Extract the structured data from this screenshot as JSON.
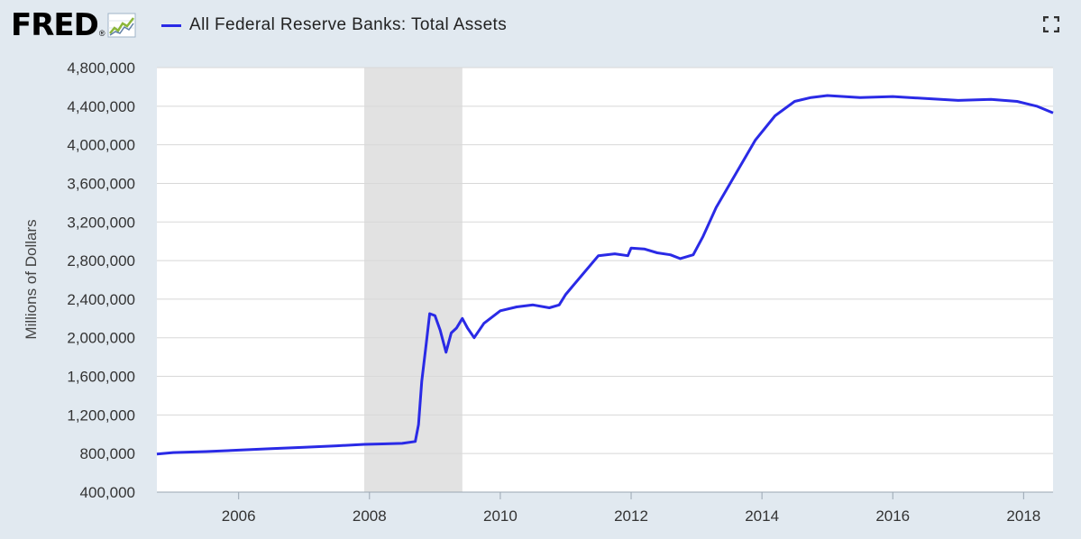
{
  "header": {
    "logo_text": "FRED",
    "logo_mark": "®",
    "logo_icon": "line-graph-icon",
    "expand_icon": "fullscreen-icon"
  },
  "colors": {
    "series": "#2a2ae6",
    "recession": "#e2e2e2",
    "plot_bg": "#ffffff",
    "page_bg": "#e1e9f0",
    "grid": "#d8d8d8"
  },
  "chart_data": {
    "type": "line",
    "title": "",
    "ylabel": "Millions of Dollars",
    "xlabel": "",
    "x_range": [
      2004.75,
      2018.45
    ],
    "ylim": [
      400000,
      4800000
    ],
    "y_ticks": [
      "400,000",
      "800,000",
      "1,200,000",
      "1,600,000",
      "2,000,000",
      "2,400,000",
      "2,800,000",
      "3,200,000",
      "3,600,000",
      "4,000,000",
      "4,400,000",
      "4,800,000"
    ],
    "x_ticks": [
      "2006",
      "2008",
      "2010",
      "2012",
      "2014",
      "2016",
      "2018"
    ],
    "legend_position": "top-left",
    "recessions": [
      {
        "start": 2007.92,
        "end": 2009.42
      }
    ],
    "series": [
      {
        "name": "All Federal Reserve Banks: Total Assets",
        "points": [
          [
            2004.75,
            795000
          ],
          [
            2005.0,
            810000
          ],
          [
            2005.5,
            820000
          ],
          [
            2006.0,
            835000
          ],
          [
            2006.5,
            850000
          ],
          [
            2007.0,
            865000
          ],
          [
            2007.5,
            880000
          ],
          [
            2007.92,
            895000
          ],
          [
            2008.2,
            900000
          ],
          [
            2008.5,
            905000
          ],
          [
            2008.7,
            925000
          ],
          [
            2008.75,
            1100000
          ],
          [
            2008.8,
            1550000
          ],
          [
            2008.87,
            1950000
          ],
          [
            2008.92,
            2250000
          ],
          [
            2009.0,
            2230000
          ],
          [
            2009.08,
            2080000
          ],
          [
            2009.17,
            1850000
          ],
          [
            2009.25,
            2050000
          ],
          [
            2009.33,
            2100000
          ],
          [
            2009.42,
            2200000
          ],
          [
            2009.5,
            2100000
          ],
          [
            2009.6,
            2000000
          ],
          [
            2009.75,
            2150000
          ],
          [
            2010.0,
            2280000
          ],
          [
            2010.25,
            2320000
          ],
          [
            2010.5,
            2340000
          ],
          [
            2010.75,
            2310000
          ],
          [
            2010.9,
            2340000
          ],
          [
            2011.0,
            2450000
          ],
          [
            2011.25,
            2650000
          ],
          [
            2011.5,
            2850000
          ],
          [
            2011.75,
            2870000
          ],
          [
            2011.95,
            2850000
          ],
          [
            2012.0,
            2930000
          ],
          [
            2012.2,
            2920000
          ],
          [
            2012.4,
            2880000
          ],
          [
            2012.6,
            2860000
          ],
          [
            2012.75,
            2820000
          ],
          [
            2012.95,
            2860000
          ],
          [
            2013.1,
            3050000
          ],
          [
            2013.3,
            3350000
          ],
          [
            2013.6,
            3700000
          ],
          [
            2013.9,
            4050000
          ],
          [
            2014.2,
            4300000
          ],
          [
            2014.5,
            4450000
          ],
          [
            2014.75,
            4490000
          ],
          [
            2015.0,
            4510000
          ],
          [
            2015.5,
            4490000
          ],
          [
            2016.0,
            4500000
          ],
          [
            2016.5,
            4480000
          ],
          [
            2017.0,
            4460000
          ],
          [
            2017.5,
            4470000
          ],
          [
            2017.9,
            4450000
          ],
          [
            2018.2,
            4400000
          ],
          [
            2018.45,
            4330000
          ]
        ]
      }
    ]
  }
}
